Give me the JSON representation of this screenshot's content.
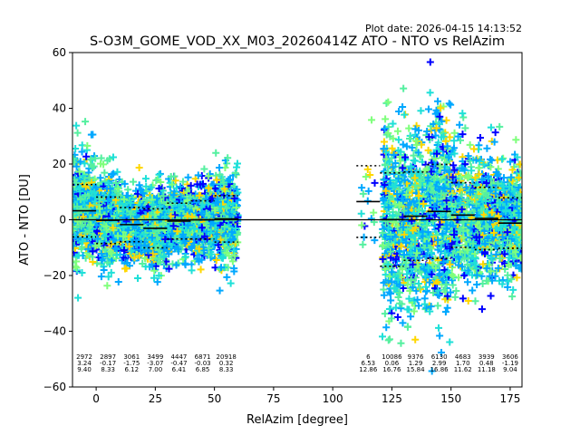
{
  "chart_data": {
    "type": "scatter",
    "plot_date": "Plot date: 2026-04-15 14:13:52",
    "title": "S-O3M_GOME_VOD_XX_M03_20260414Z ATO - NTO vs RelAzim",
    "xlabel": "RelAzim [degree]",
    "ylabel": "ATO - NTO [DU]",
    "xlim": [
      -10,
      180
    ],
    "ylim": [
      -60,
      60
    ],
    "x_ticks": [
      "0",
      "25",
      "50",
      "75",
      "100",
      "125",
      "150",
      "175"
    ],
    "x_tick_values": [
      0,
      25,
      50,
      75,
      100,
      125,
      150,
      175
    ],
    "y_ticks": [
      "−60",
      "−40",
      "−20",
      "0",
      "20",
      "40",
      "60"
    ],
    "y_tick_values": [
      -60,
      -40,
      -20,
      0,
      20,
      40,
      60
    ],
    "grid": false,
    "legend": "none",
    "marker": "+",
    "colormap": [
      "#0000ff",
      "#00a8ff",
      "#1fe0d8",
      "#55f0a0",
      "#7fff7c",
      "#ffd700"
    ],
    "bins": [
      {
        "center": -5,
        "x0": -10,
        "x1": 0,
        "count": "2972",
        "mean": "3.24",
        "std": "9.40",
        "mean_v": 3.24,
        "std_v": 9.4
      },
      {
        "center": 5,
        "x0": 0,
        "x1": 10,
        "count": "2897",
        "mean": "-0.17",
        "std": "8.33",
        "mean_v": -0.17,
        "std_v": 8.33
      },
      {
        "center": 15,
        "x0": 10,
        "x1": 20,
        "count": "3061",
        "mean": "-1.75",
        "std": "6.12",
        "mean_v": -1.75,
        "std_v": 6.12
      },
      {
        "center": 25,
        "x0": 20,
        "x1": 30,
        "count": "3499",
        "mean": "-3.07",
        "std": "7.00",
        "mean_v": -3.07,
        "std_v": 7.0
      },
      {
        "center": 35,
        "x0": 30,
        "x1": 40,
        "count": "4447",
        "mean": "-0.47",
        "std": "6.41",
        "mean_v": -0.47,
        "std_v": 6.41
      },
      {
        "center": 45,
        "x0": 40,
        "x1": 50,
        "count": "6871",
        "mean": "-0.03",
        "std": "6.85",
        "mean_v": -0.03,
        "std_v": 6.85
      },
      {
        "center": 55,
        "x0": 50,
        "x1": 60,
        "count": "20918",
        "mean": "0.32",
        "std": "8.33",
        "mean_v": 0.32,
        "std_v": 8.33
      },
      {
        "center": 115,
        "x0": 110,
        "x1": 120,
        "count": "6",
        "mean": "6.53",
        "std": "12.86",
        "mean_v": 6.53,
        "std_v": 12.86
      },
      {
        "center": 125,
        "x0": 120,
        "x1": 130,
        "count": "10086",
        "mean": "0.06",
        "std": "16.76",
        "mean_v": 0.06,
        "std_v": 16.76
      },
      {
        "center": 135,
        "x0": 130,
        "x1": 140,
        "count": "9376",
        "mean": "1.29",
        "std": "15.84",
        "mean_v": 1.29,
        "std_v": 15.84
      },
      {
        "center": 145,
        "x0": 140,
        "x1": 150,
        "count": "6130",
        "mean": "2.99",
        "std": "16.86",
        "mean_v": 2.99,
        "std_v": 16.86
      },
      {
        "center": 155,
        "x0": 150,
        "x1": 160,
        "count": "4683",
        "mean": "1.70",
        "std": "11.62",
        "mean_v": 1.7,
        "std_v": 11.62
      },
      {
        "center": 165,
        "x0": 160,
        "x1": 170,
        "count": "3939",
        "mean": "0.48",
        "std": "11.18",
        "mean_v": 0.48,
        "std_v": 11.18
      },
      {
        "center": 175,
        "x0": 170,
        "x1": 180,
        "count": "3606",
        "mean": "-1.19",
        "std": "9.04",
        "mean_v": -1.19,
        "std_v": 9.04
      }
    ],
    "scatter_ranges": [
      {
        "x0": -10,
        "x1": 60
      },
      {
        "x0": 112,
        "x1": 118
      },
      {
        "x0": 121,
        "x1": 180
      }
    ]
  }
}
